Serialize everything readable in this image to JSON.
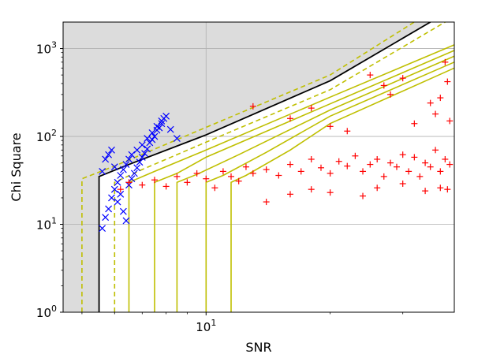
{
  "chart_data": {
    "type": "scatter",
    "title": "",
    "xlabel": "SNR",
    "ylabel": "Chi Square",
    "xscale": "log",
    "yscale": "log",
    "xlim": [
      4.5,
      40
    ],
    "ylim": [
      1,
      2000
    ],
    "grid": true,
    "x_ticks": [
      {
        "value": 10,
        "label": "10^1"
      }
    ],
    "y_ticks": [
      {
        "value": 1,
        "label": "10^0"
      },
      {
        "value": 10,
        "label": "10^1"
      },
      {
        "value": 100,
        "label": "10^2"
      },
      {
        "value": 1000,
        "label": "10^3"
      }
    ],
    "colors": {
      "background_region": "#dcdcdc",
      "threshold_line": "#000000",
      "contours": "#bfbf00",
      "series_blue": "#0000ff",
      "series_red": "#ff0000",
      "grid": "#b0b0b0"
    },
    "shaded_region": {
      "description": "excluded region above the threshold curve",
      "snr_floor": 5.5,
      "curve": [
        [
          5.5,
          35
        ],
        [
          6.5,
          48
        ],
        [
          10,
          104
        ],
        [
          20,
          430
        ],
        [
          35,
          2000
        ]
      ]
    },
    "threshold_curve": {
      "color": "#000000",
      "points": [
        [
          5.5,
          1
        ],
        [
          5.5,
          35
        ],
        [
          6.5,
          48
        ],
        [
          10,
          104
        ],
        [
          20,
          430
        ],
        [
          35,
          2000
        ]
      ]
    },
    "contours": [
      {
        "style": "dashed",
        "points": [
          [
            5.0,
            1
          ],
          [
            5.0,
            33
          ],
          [
            6.0,
            46
          ],
          [
            10,
            127
          ],
          [
            20,
            500
          ],
          [
            32,
            2000
          ]
        ]
      },
      {
        "style": "dashed",
        "points": [
          [
            6.0,
            1
          ],
          [
            6.0,
            30
          ],
          [
            7.0,
            42
          ],
          [
            10,
            86
          ],
          [
            20,
            340
          ],
          [
            38,
            2000
          ]
        ]
      },
      {
        "style": "solid",
        "points": [
          [
            6.5,
            1
          ],
          [
            6.5,
            30
          ],
          [
            7.5,
            40
          ],
          [
            10,
            70
          ],
          [
            20,
            280
          ],
          [
            40,
            1100
          ]
        ]
      },
      {
        "style": "solid",
        "points": [
          [
            7.5,
            1
          ],
          [
            7.5,
            30
          ],
          [
            8.5,
            38
          ],
          [
            10,
            58
          ],
          [
            20,
            235
          ],
          [
            40,
            950
          ]
        ]
      },
      {
        "style": "solid",
        "points": [
          [
            8.5,
            1
          ],
          [
            8.5,
            30
          ],
          [
            9.5,
            37
          ],
          [
            12,
            62
          ],
          [
            20,
            200
          ],
          [
            40,
            820
          ]
        ]
      },
      {
        "style": "solid",
        "points": [
          [
            10,
            1
          ],
          [
            10,
            30
          ],
          [
            11,
            36
          ],
          [
            14,
            66
          ],
          [
            20,
            170
          ],
          [
            40,
            700
          ]
        ]
      },
      {
        "style": "solid",
        "points": [
          [
            11.5,
            1
          ],
          [
            11.5,
            30
          ],
          [
            12.5,
            36
          ],
          [
            16,
            70
          ],
          [
            20,
            140
          ],
          [
            40,
            600
          ]
        ]
      }
    ],
    "series": [
      {
        "marker": "x",
        "color": "#0000ff",
        "values": [
          [
            5.6,
            9
          ],
          [
            5.7,
            12
          ],
          [
            5.8,
            15
          ],
          [
            5.9,
            20
          ],
          [
            6.0,
            25
          ],
          [
            6.1,
            30
          ],
          [
            6.2,
            36
          ],
          [
            6.3,
            42
          ],
          [
            6.4,
            48
          ],
          [
            6.5,
            55
          ],
          [
            6.6,
            62
          ],
          [
            6.8,
            70
          ],
          [
            7.0,
            80
          ],
          [
            7.2,
            95
          ],
          [
            7.4,
            110
          ],
          [
            7.6,
            130
          ],
          [
            7.8,
            150
          ],
          [
            8.0,
            170
          ],
          [
            5.6,
            40
          ],
          [
            5.7,
            55
          ],
          [
            5.8,
            62
          ],
          [
            5.9,
            70
          ],
          [
            6.0,
            45
          ],
          [
            6.1,
            18
          ],
          [
            6.2,
            22
          ],
          [
            6.3,
            14
          ],
          [
            6.4,
            11
          ],
          [
            6.5,
            28
          ],
          [
            6.6,
            33
          ],
          [
            6.7,
            38
          ],
          [
            6.8,
            44
          ],
          [
            6.9,
            51
          ],
          [
            7.0,
            58
          ],
          [
            7.1,
            64
          ],
          [
            7.2,
            72
          ],
          [
            7.3,
            85
          ],
          [
            7.4,
            92
          ],
          [
            7.5,
            100
          ],
          [
            7.6,
            118
          ],
          [
            7.7,
            125
          ],
          [
            7.8,
            140
          ],
          [
            7.9,
            160
          ],
          [
            8.2,
            120
          ],
          [
            8.5,
            95
          ]
        ]
      },
      {
        "marker": "+",
        "color": "#ff0000",
        "values": [
          [
            6.2,
            25
          ],
          [
            6.5,
            30
          ],
          [
            7.0,
            28
          ],
          [
            7.5,
            32
          ],
          [
            8.0,
            27
          ],
          [
            8.5,
            35
          ],
          [
            9.0,
            30
          ],
          [
            9.5,
            38
          ],
          [
            10.0,
            33
          ],
          [
            10.5,
            26
          ],
          [
            11.0,
            40
          ],
          [
            11.5,
            35
          ],
          [
            12.0,
            31
          ],
          [
            12.5,
            45
          ],
          [
            13.0,
            38
          ],
          [
            14.0,
            42
          ],
          [
            15.0,
            36
          ],
          [
            16.0,
            48
          ],
          [
            17.0,
            40
          ],
          [
            18.0,
            55
          ],
          [
            19.0,
            44
          ],
          [
            20.0,
            38
          ],
          [
            21.0,
            52
          ],
          [
            22.0,
            46
          ],
          [
            23.0,
            60
          ],
          [
            24.0,
            40
          ],
          [
            25.0,
            48
          ],
          [
            26.0,
            55
          ],
          [
            27.0,
            35
          ],
          [
            28.0,
            50
          ],
          [
            29.0,
            45
          ],
          [
            30.0,
            62
          ],
          [
            31.0,
            40
          ],
          [
            32.0,
            58
          ],
          [
            33.0,
            35
          ],
          [
            34.0,
            50
          ],
          [
            35.0,
            45
          ],
          [
            36.0,
            70
          ],
          [
            37.0,
            40
          ],
          [
            38.0,
            55
          ],
          [
            39.0,
            48
          ],
          [
            13.0,
            220
          ],
          [
            16.0,
            160
          ],
          [
            18.0,
            210
          ],
          [
            20.0,
            130
          ],
          [
            22.0,
            115
          ],
          [
            25.0,
            500
          ],
          [
            27.0,
            380
          ],
          [
            28.0,
            300
          ],
          [
            30.0,
            460
          ],
          [
            32.0,
            140
          ],
          [
            35.0,
            240
          ],
          [
            36.0,
            180
          ],
          [
            37.0,
            275
          ],
          [
            38.0,
            700
          ],
          [
            38.5,
            420
          ],
          [
            39.0,
            150
          ],
          [
            14.0,
            18
          ],
          [
            16.0,
            22
          ],
          [
            18.0,
            25
          ],
          [
            20.0,
            23
          ],
          [
            24.0,
            21
          ],
          [
            26.0,
            26
          ],
          [
            30.0,
            29
          ],
          [
            34.0,
            24
          ],
          [
            37.0,
            26
          ],
          [
            38.5,
            25
          ]
        ]
      }
    ]
  }
}
